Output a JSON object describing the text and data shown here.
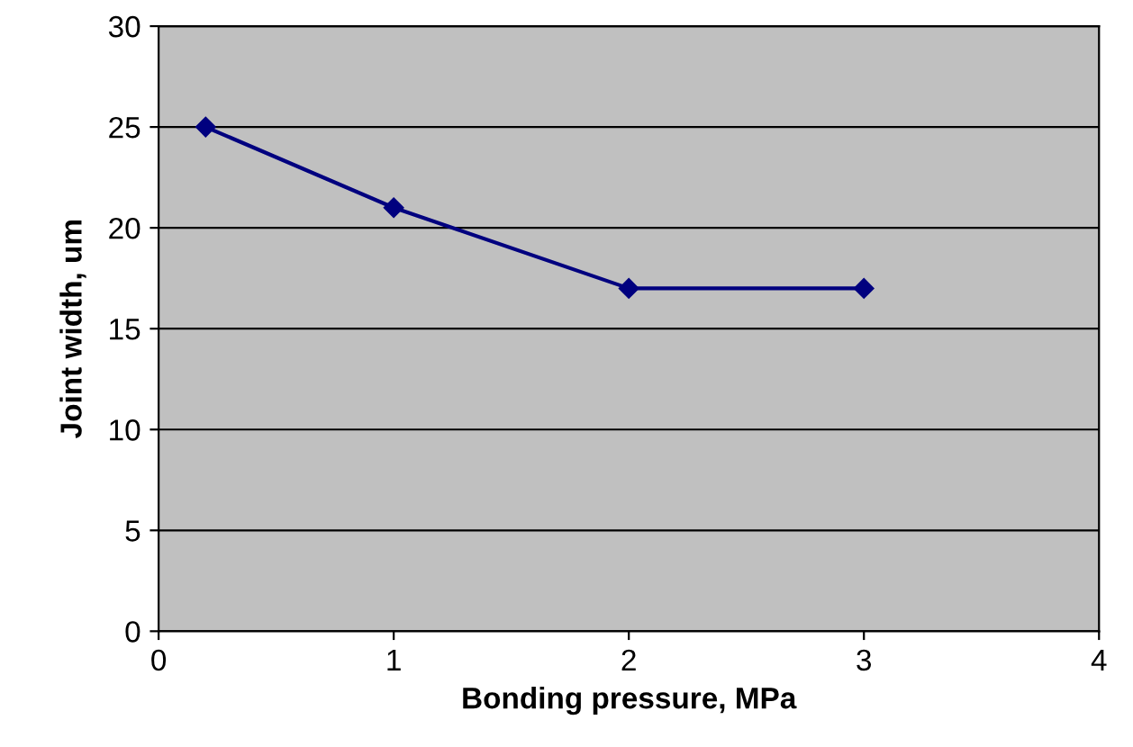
{
  "chart_data": {
    "type": "line",
    "xlabel": "Bonding pressure, MPa",
    "ylabel": "Joint width, um",
    "x": [
      0.2,
      1,
      2,
      3
    ],
    "series": [
      {
        "color": "#00007f",
        "values": [
          25,
          21,
          17,
          17
        ]
      }
    ],
    "xlim": [
      0,
      4
    ],
    "xticks": [
      0,
      1,
      2,
      3,
      4
    ],
    "ylim": [
      0,
      30
    ],
    "yticks": [
      0,
      5,
      10,
      15,
      20,
      25,
      30
    ],
    "grid": "y",
    "marker": "diamond",
    "line_style": "solid"
  }
}
